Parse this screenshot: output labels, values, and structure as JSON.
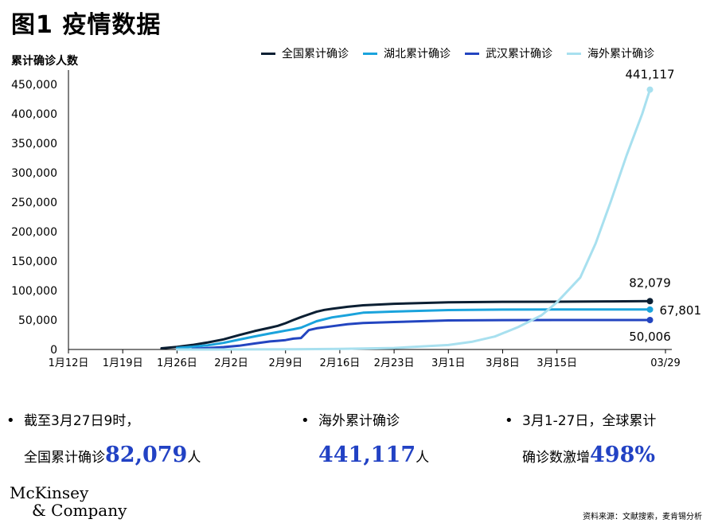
{
  "title": "图1 疫情数据",
  "y_unit_label": "累计确诊人数",
  "colors": {
    "national": "#0b1f33",
    "hubei": "#1aa3dc",
    "wuhan": "#2345c0",
    "overseas": "#a8e0ef",
    "highlight": "#2242c4"
  },
  "chart_data": {
    "type": "line",
    "title": "",
    "xlabel": "",
    "ylabel": "累计确诊人数",
    "ylim": [
      0,
      450000
    ],
    "yticks": [
      0,
      50000,
      100000,
      150000,
      200000,
      250000,
      300000,
      350000,
      400000,
      450000
    ],
    "ytick_labels": [
      "0",
      "50,000",
      "100,000",
      "150,000",
      "200,000",
      "250,000",
      "300,000",
      "350,000",
      "400,000",
      "450,000"
    ],
    "xticks": [
      "1月12日",
      "1月19日",
      "1月26日",
      "2月2日",
      "2月9日",
      "2月16日",
      "2月23日",
      "3月1日",
      "3月8日",
      "3月15日",
      "03/29"
    ],
    "xtick_days": [
      0,
      7,
      14,
      21,
      28,
      35,
      42,
      49,
      56,
      63,
      77
    ],
    "legend_position": "top-right",
    "series": [
      {
        "name": "全国累计确诊",
        "color_key": "national",
        "x": [
          12,
          14,
          16,
          18,
          20,
          22,
          24,
          26,
          27,
          28,
          29,
          30,
          32,
          33,
          34,
          36,
          38,
          42,
          49,
          56,
          63,
          70,
          75
        ],
        "y": [
          2000,
          4500,
          7700,
          12000,
          17200,
          24500,
          31200,
          37000,
          40200,
          44600,
          50000,
          55000,
          64000,
          67100,
          69000,
          72500,
          75000,
          77500,
          80000,
          80900,
          81100,
          81600,
          82079
        ],
        "end_label": "82,079"
      },
      {
        "name": "湖北累计确诊",
        "color_key": "hubei",
        "x": [
          14,
          16,
          18,
          20,
          22,
          24,
          26,
          27,
          28,
          29,
          30,
          32,
          34,
          36,
          38,
          42,
          49,
          56,
          63,
          70,
          75
        ],
        "y": [
          2700,
          4600,
          7200,
          11200,
          16700,
          22100,
          27100,
          29600,
          32000,
          34300,
          37000,
          48000,
          54400,
          58200,
          62500,
          64300,
          66900,
          67700,
          67800,
          67800,
          67801
        ],
        "end_label": "67,801"
      },
      {
        "name": "武汉累计确诊",
        "color_key": "wuhan",
        "x": [
          16,
          20,
          22,
          24,
          26,
          27,
          28,
          29,
          30,
          31,
          32,
          34,
          36,
          38,
          42,
          49,
          56,
          63,
          70,
          75
        ],
        "y": [
          1000,
          4100,
          6400,
          10100,
          13600,
          14700,
          16000,
          18400,
          19500,
          32900,
          35900,
          39500,
          42800,
          45000,
          46600,
          49300,
          49900,
          50000,
          50005,
          50006
        ],
        "end_label": "50,006"
      },
      {
        "name": "海外累计确诊",
        "color_key": "overseas",
        "x": [
          14,
          28,
          35,
          42,
          49,
          52,
          55,
          58,
          61,
          63,
          66,
          68,
          70,
          72,
          74,
          75
        ],
        "y": [
          0,
          300,
          1000,
          2500,
          7500,
          13000,
          22000,
          38000,
          58000,
          80000,
          122000,
          180000,
          253000,
          330000,
          400000,
          441117
        ],
        "end_label": "441,117"
      }
    ]
  },
  "stats": [
    {
      "line1": "截至3月27日9时，",
      "line2_prefix": "全国累计确诊",
      "value": "82,079",
      "suffix": "人"
    },
    {
      "line1": "海外累计确诊",
      "line2_prefix": "",
      "value": "441,117",
      "suffix": "人"
    },
    {
      "line1": "3月1-27日，全球累计",
      "line2_prefix": "确诊数激增",
      "value": "498%",
      "suffix": ""
    }
  ],
  "logo": {
    "line1": "McKinsey",
    "line2": "& Company"
  },
  "source": "资料来源：文献搜索，麦肯锡分析"
}
